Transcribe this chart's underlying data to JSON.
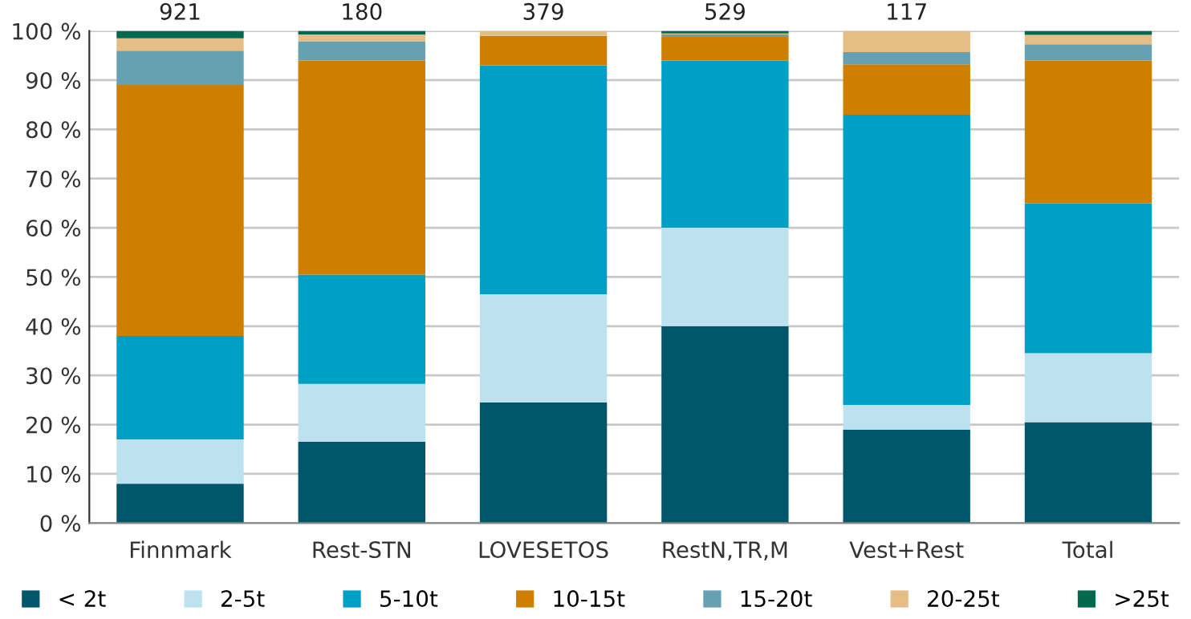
{
  "chart_data": {
    "type": "bar",
    "stacked": true,
    "categories": [
      "Finnmark",
      "Rest-STN",
      "LOVESETOS",
      "RestN,TR,M",
      "Vest+Rest",
      "Total"
    ],
    "series": [
      {
        "name": "< 2t",
        "color": "#00566b",
        "values": [
          8,
          16.5,
          24.5,
          40,
          19,
          20.5
        ]
      },
      {
        "name": "2-5t",
        "color": "#bde2ef",
        "values": [
          9,
          11.8,
          22,
          20,
          5,
          14
        ]
      },
      {
        "name": "5-10t",
        "color": "#009fc6",
        "values": [
          21,
          22.2,
          46.5,
          34,
          59,
          30.5
        ]
      },
      {
        "name": "10-15t",
        "color": "#cf7f00",
        "values": [
          51,
          43.5,
          6,
          4.8,
          10.2,
          29
        ]
      },
      {
        "name": "15-20t",
        "color": "#66a1b2",
        "values": [
          7,
          3.8,
          0,
          0.5,
          2.5,
          3.3
        ]
      },
      {
        "name": "20-25t",
        "color": "#e6bd84",
        "values": [
          2.5,
          1.5,
          1,
          0.2,
          4.3,
          1.9
        ]
      },
      {
        "name": ">25t",
        "color": "#00694e",
        "values": [
          1.5,
          0.7,
          0,
          0.5,
          0,
          0.8
        ]
      }
    ],
    "annotations": [
      {
        "text": "921",
        "x": "Finnmark",
        "y": 100
      },
      {
        "text": "180",
        "x": "Rest-STN",
        "y": 100
      },
      {
        "text": "379",
        "x": "LOVESETOS",
        "y": 100
      },
      {
        "text": "529",
        "x": "RestN,TR,M",
        "y": 100
      },
      {
        "text": "117",
        "x": "Vest+Rest",
        "y": 100
      }
    ],
    "ylim": [
      0,
      100
    ],
    "yticks": [
      {
        "value": 0,
        "label": "0 %"
      },
      {
        "value": 10,
        "label": "10 %"
      },
      {
        "value": 20,
        "label": "20 %"
      },
      {
        "value": 30,
        "label": "30 %"
      },
      {
        "value": 40,
        "label": "40 %"
      },
      {
        "value": 50,
        "label": "50 %"
      },
      {
        "value": 60,
        "label": "60 %"
      },
      {
        "value": 70,
        "label": "70 %"
      },
      {
        "value": 80,
        "label": "80 %"
      },
      {
        "value": 90,
        "label": "90 %"
      },
      {
        "value": 100,
        "label": "100 %"
      }
    ],
    "grid": "y",
    "legend": "bottom"
  }
}
